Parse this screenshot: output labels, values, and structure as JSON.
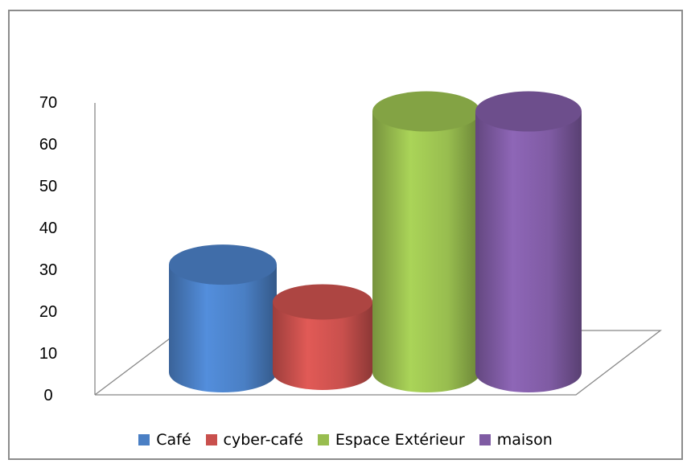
{
  "chart_data": {
    "type": "bar",
    "style": "3d-cylinder",
    "categories": [
      "Café",
      "cyber-café",
      "Espace Extérieur",
      "maison"
    ],
    "series": [
      {
        "values": [
          26,
          17,
          63,
          63
        ]
      }
    ],
    "colors": [
      "#4a7fc4",
      "#c9504d",
      "#98bd4f",
      "#7f5ba3"
    ],
    "title": "",
    "xlabel": "",
    "ylabel": "",
    "ylim": [
      0,
      70
    ],
    "yticks": [
      "0",
      "10",
      "20",
      "30",
      "40",
      "50",
      "60",
      "70"
    ],
    "grid": false,
    "legend_position": "bottom"
  }
}
